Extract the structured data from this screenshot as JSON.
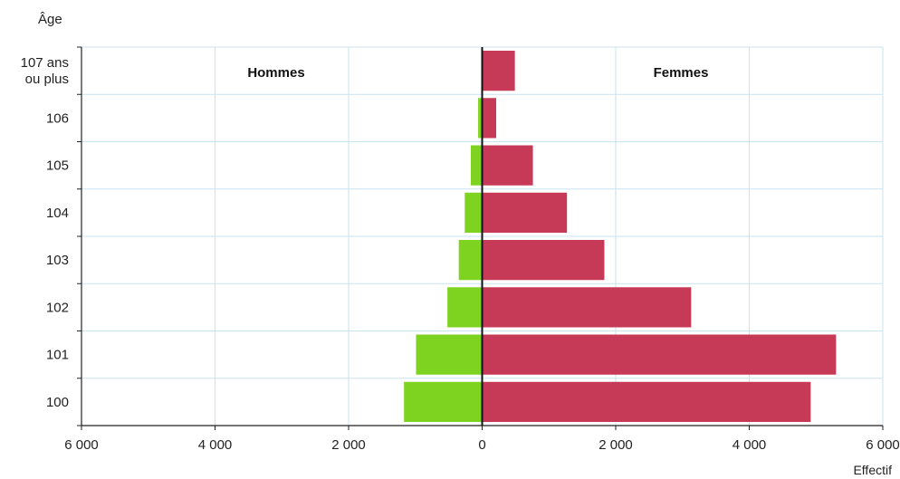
{
  "chart_data": {
    "type": "bar",
    "orientation": "horizontal",
    "title": "",
    "ylabel": "Âge",
    "xlabel": "Effectif",
    "categories": [
      "107 ans ou plus",
      "106",
      "105",
      "104",
      "103",
      "102",
      "101",
      "100"
    ],
    "category_lines": [
      [
        "107 ans",
        "ou plus"
      ],
      [
        "106"
      ],
      [
        "105"
      ],
      [
        "104"
      ],
      [
        "103"
      ],
      [
        "102"
      ],
      [
        "101"
      ],
      [
        "100"
      ]
    ],
    "series": [
      {
        "name": "Hommes",
        "side": "left",
        "color": "#7ed321",
        "values": [
          10,
          60,
          170,
          260,
          350,
          520,
          990,
          1170
        ]
      },
      {
        "name": "Femmes",
        "side": "right",
        "color": "#c63a57",
        "values": [
          490,
          210,
          760,
          1270,
          1830,
          3130,
          5300,
          4920
        ]
      }
    ],
    "xlim": [
      -6000,
      6000
    ],
    "x_ticks": [
      -6000,
      -4000,
      -2000,
      0,
      2000,
      4000,
      6000
    ],
    "x_tick_labels": [
      "6 000",
      "4 000",
      "2 000",
      "0",
      "2 000",
      "4 000",
      "6 000"
    ],
    "grid": true,
    "grid_color": "#c9e4f0",
    "axis_color": "#222222"
  }
}
